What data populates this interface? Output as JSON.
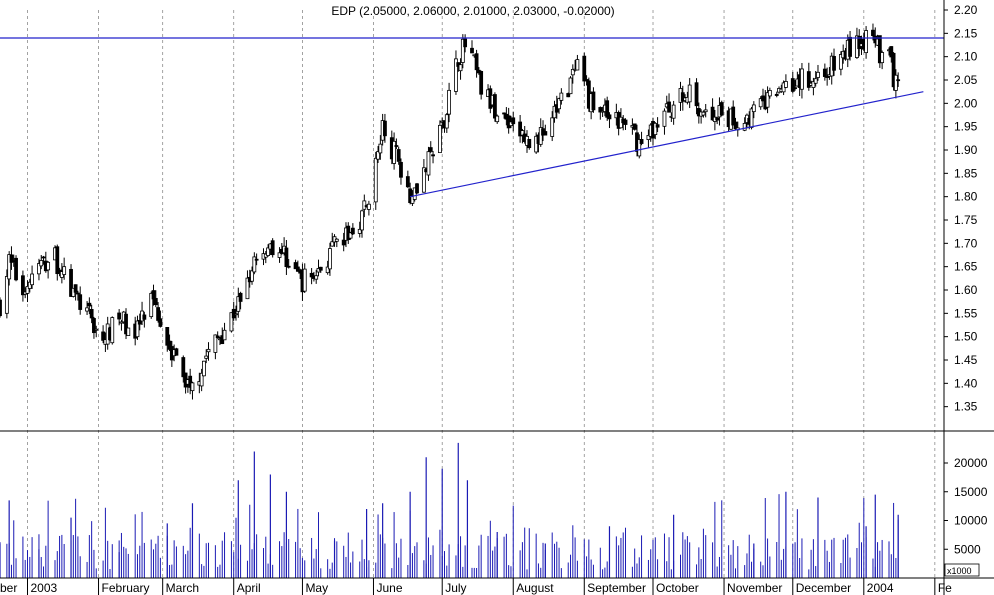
{
  "header": {
    "quote": "EDP (2.05000, 2.06000, 2.01000, 2.03000, -0.02000)"
  },
  "colors": {
    "background": "#ffffff",
    "candle": "#000000",
    "volume": "#1a1ab4",
    "trendline": "#2222cc",
    "grid": "#8c8c8c",
    "frame": "#000000"
  },
  "chart_data": [
    {
      "type": "candlestick",
      "title": "EDP (2.05000, 2.06000, 2.01000, 2.03000, -0.02000)",
      "last_bar": {
        "open": 2.05,
        "high": 2.06,
        "low": 2.01,
        "close": 2.03,
        "change": -0.02
      },
      "x_range": [
        "2002-12-20",
        "2004-02-05"
      ],
      "ylim": [
        1.3,
        2.2
      ],
      "y_ticks": [
        "1.35",
        "1.40",
        "1.45",
        "1.50",
        "1.55",
        "1.60",
        "1.65",
        "1.70",
        "1.75",
        "1.80",
        "1.85",
        "1.90",
        "1.95",
        "2.00",
        "2.05",
        "2.10",
        "2.15",
        "2.20"
      ],
      "x_tick_labels": [
        "ber",
        "2003",
        "February",
        "March",
        "April",
        "May",
        "June",
        "July",
        "August",
        "September",
        "October",
        "November",
        "December",
        "2004",
        "Fe"
      ],
      "grid": "vertical dashed at month boundaries",
      "close_series": [
        {
          "date": "2002-12-20",
          "close": 1.57
        },
        {
          "date": "2002-12-24",
          "close": 1.66
        },
        {
          "date": "2002-12-30",
          "close": 1.6
        },
        {
          "date": "2003-01-06",
          "close": 1.65
        },
        {
          "date": "2003-01-13",
          "close": 1.67
        },
        {
          "date": "2003-01-20",
          "close": 1.6
        },
        {
          "date": "2003-01-27",
          "close": 1.55
        },
        {
          "date": "2003-02-03",
          "close": 1.49
        },
        {
          "date": "2003-02-10",
          "close": 1.54
        },
        {
          "date": "2003-02-17",
          "close": 1.51
        },
        {
          "date": "2003-02-24",
          "close": 1.57
        },
        {
          "date": "2003-03-03",
          "close": 1.5
        },
        {
          "date": "2003-03-10",
          "close": 1.41
        },
        {
          "date": "2003-03-14",
          "close": 1.39
        },
        {
          "date": "2003-03-20",
          "close": 1.46
        },
        {
          "date": "2003-03-27",
          "close": 1.51
        },
        {
          "date": "2003-04-03",
          "close": 1.57
        },
        {
          "date": "2003-04-10",
          "close": 1.67
        },
        {
          "date": "2003-04-17",
          "close": 1.7
        },
        {
          "date": "2003-04-24",
          "close": 1.67
        },
        {
          "date": "2003-05-01",
          "close": 1.62
        },
        {
          "date": "2003-05-08",
          "close": 1.64
        },
        {
          "date": "2003-05-15",
          "close": 1.69
        },
        {
          "date": "2003-05-22",
          "close": 1.72
        },
        {
          "date": "2003-05-29",
          "close": 1.78
        },
        {
          "date": "2003-06-05",
          "close": 1.94
        },
        {
          "date": "2003-06-12",
          "close": 1.88
        },
        {
          "date": "2003-06-17",
          "close": 1.81
        },
        {
          "date": "2003-06-24",
          "close": 1.86
        },
        {
          "date": "2003-07-01",
          "close": 1.95
        },
        {
          "date": "2003-07-08",
          "close": 2.1
        },
        {
          "date": "2003-07-12",
          "close": 2.13
        },
        {
          "date": "2003-07-18",
          "close": 2.03
        },
        {
          "date": "2003-07-25",
          "close": 1.98
        },
        {
          "date": "2003-08-01",
          "close": 1.96
        },
        {
          "date": "2003-08-08",
          "close": 1.91
        },
        {
          "date": "2003-08-15",
          "close": 1.94
        },
        {
          "date": "2003-08-22",
          "close": 2.01
        },
        {
          "date": "2003-08-29",
          "close": 2.07
        },
        {
          "date": "2003-09-05",
          "close": 1.99
        },
        {
          "date": "2003-09-12",
          "close": 1.97
        },
        {
          "date": "2003-09-19",
          "close": 1.95
        },
        {
          "date": "2003-09-26",
          "close": 1.91
        },
        {
          "date": "2003-10-03",
          "close": 1.96
        },
        {
          "date": "2003-10-10",
          "close": 2.0
        },
        {
          "date": "2003-10-17",
          "close": 2.02
        },
        {
          "date": "2003-10-24",
          "close": 1.98
        },
        {
          "date": "2003-10-31",
          "close": 1.97
        },
        {
          "date": "2003-11-07",
          "close": 1.96
        },
        {
          "date": "2003-11-14",
          "close": 1.98
        },
        {
          "date": "2003-11-21",
          "close": 2.01
        },
        {
          "date": "2003-11-28",
          "close": 2.05
        },
        {
          "date": "2003-12-05",
          "close": 2.05
        },
        {
          "date": "2003-12-12",
          "close": 2.06
        },
        {
          "date": "2003-12-19",
          "close": 2.08
        },
        {
          "date": "2003-12-26",
          "close": 2.12
        },
        {
          "date": "2004-01-02",
          "close": 2.14
        },
        {
          "date": "2004-01-06",
          "close": 2.12
        },
        {
          "date": "2004-01-12",
          "close": 2.09
        },
        {
          "date": "2004-01-16",
          "close": 2.03
        }
      ],
      "trendlines": [
        {
          "from": {
            "date": "2003-06-17",
            "price": 1.8
          },
          "to": {
            "date": "2004-01-27",
            "price": 2.025
          }
        },
        {
          "price": 2.14
        }
      ]
    },
    {
      "type": "bar",
      "ylim": [
        0,
        24000
      ],
      "y_ticks": [
        "5000",
        "10000",
        "15000",
        "20000"
      ],
      "unit": "x1000",
      "approx_volume": [
        {
          "date": "2002-12-20",
          "value": 6000
        },
        {
          "date": "2002-12-24",
          "value": 13500
        },
        {
          "date": "2003-01-06",
          "value": 5000
        },
        {
          "date": "2003-01-20",
          "value": 10500
        },
        {
          "date": "2003-02-10",
          "value": 4500
        },
        {
          "date": "2003-03-03",
          "value": 9500
        },
        {
          "date": "2003-03-14",
          "value": 13000
        },
        {
          "date": "2003-04-03",
          "value": 17000
        },
        {
          "date": "2003-04-10",
          "value": 22000
        },
        {
          "date": "2003-04-17",
          "value": 18000
        },
        {
          "date": "2003-04-24",
          "value": 15000
        },
        {
          "date": "2003-05-15",
          "value": 6500
        },
        {
          "date": "2003-05-29",
          "value": 12000
        },
        {
          "date": "2003-06-05",
          "value": 13000
        },
        {
          "date": "2003-06-17",
          "value": 15000
        },
        {
          "date": "2003-06-24",
          "value": 21000
        },
        {
          "date": "2003-07-01",
          "value": 19000
        },
        {
          "date": "2003-07-08",
          "value": 23500
        },
        {
          "date": "2003-07-12",
          "value": 17000
        },
        {
          "date": "2003-07-25",
          "value": 8000
        },
        {
          "date": "2003-08-15",
          "value": 6000
        },
        {
          "date": "2003-09-12",
          "value": 9000
        },
        {
          "date": "2003-10-10",
          "value": 11000
        },
        {
          "date": "2003-11-14",
          "value": 6000
        },
        {
          "date": "2003-11-28",
          "value": 15000
        },
        {
          "date": "2003-12-12",
          "value": 14000
        },
        {
          "date": "2004-01-02",
          "value": 9000
        },
        {
          "date": "2004-01-06",
          "value": 14500
        },
        {
          "date": "2004-01-16",
          "value": 11000
        }
      ]
    }
  ]
}
